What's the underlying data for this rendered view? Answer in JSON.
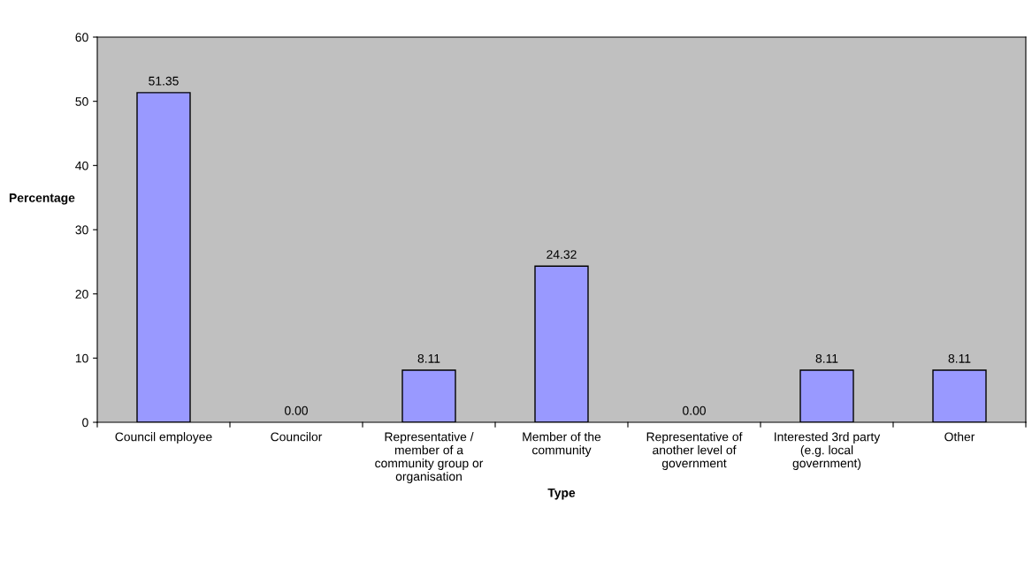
{
  "chart_data": {
    "type": "bar",
    "xlabel": "Type",
    "ylabel": "Percentage",
    "categories": [
      "Council employee",
      "Councilor",
      "Representative /\nmember of a\ncommunity group or\norganisation",
      "Member of the\ncommunity",
      "Representative of\nanother level of\ngovernment",
      "Interested 3rd party\n(e.g. local\ngovernment)",
      "Other"
    ],
    "values": [
      51.35,
      0,
      8.11,
      24.32,
      0,
      8.11,
      8.11
    ],
    "value_labels": [
      "51.35",
      "0.00",
      "8.11",
      "24.32",
      "0.00",
      "8.11",
      "8.11"
    ],
    "color": "#9999ff",
    "ylim": [
      0,
      60
    ],
    "yticks": [
      0,
      10,
      20,
      30,
      40,
      50,
      60
    ],
    "grid": false
  }
}
